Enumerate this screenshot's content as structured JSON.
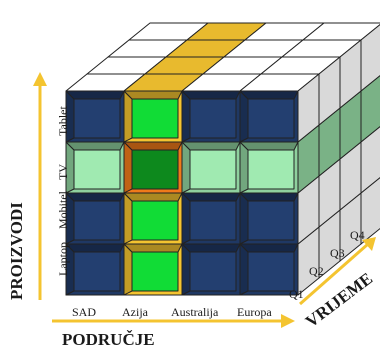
{
  "axes": {
    "products": {
      "title": "PROIZVODI",
      "items": [
        "Laptop",
        "Mobitel",
        "TV",
        "Tablet"
      ]
    },
    "regions": {
      "title": "PODRUČJE",
      "items": [
        "SAD",
        "Azija",
        "Australija",
        "Europa"
      ]
    },
    "time": {
      "title": "VRIJEME",
      "items": [
        "Q1",
        "Q2",
        "Q3",
        "Q4"
      ]
    }
  },
  "colors": {
    "cube_front": "#1f3864",
    "cube_top_unselected": "#ffffff",
    "cube_side_unselected": "#d9d9d9",
    "slice_region": "#f4c430",
    "slice_product": "#8fd19e",
    "intersection": "#f07a1a",
    "arrow": "#f4c430",
    "edge": "#222222"
  },
  "highlight": {
    "region": "Azija",
    "product": "TV"
  }
}
